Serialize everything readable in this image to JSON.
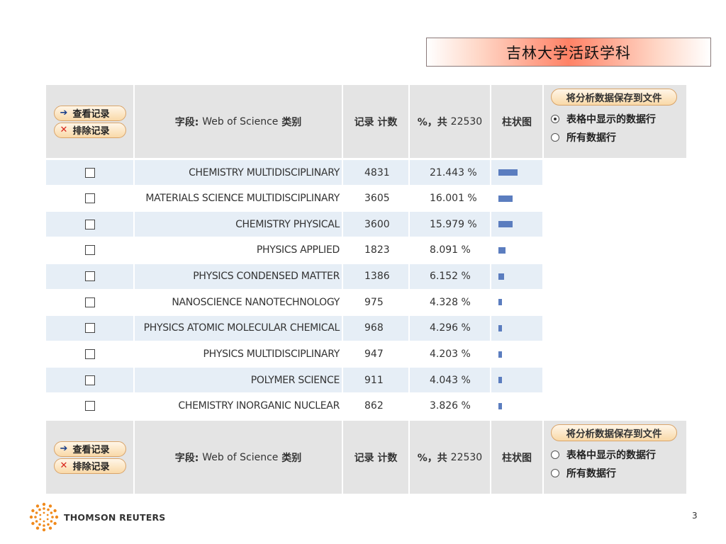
{
  "slide": {
    "title": "吉林大学活跃学科",
    "page_number": "3",
    "logo_text": "THOMSON REUTERS"
  },
  "header": {
    "view_records_label": "查看记录",
    "exclude_records_label": "排除记录",
    "field_prefix": "字段:",
    "field_name": "Web of Science",
    "field_suffix": "类别",
    "count_label": "记录 计数",
    "percent_prefix": "%，共",
    "percent_total": "22530",
    "bar_label": "柱状图",
    "save_button_label": "将分析数据保存到文件",
    "option_displayed_rows": "表格中显示的数据行",
    "option_all_rows": "所有数据行"
  },
  "rows": [
    {
      "category": "CHEMISTRY MULTIDISCIPLINARY",
      "count": "4831",
      "percent": "21.443 %",
      "share": 21.443
    },
    {
      "category": "MATERIALS SCIENCE MULTIDISCIPLINARY",
      "count": "3605",
      "percent": "16.001 %",
      "share": 16.001
    },
    {
      "category": "CHEMISTRY PHYSICAL",
      "count": "3600",
      "percent": "15.979 %",
      "share": 15.979
    },
    {
      "category": "PHYSICS APPLIED",
      "count": "1823",
      "percent": "8.091 %",
      "share": 8.091
    },
    {
      "category": "PHYSICS CONDENSED MATTER",
      "count": "1386",
      "percent": "6.152 %",
      "share": 6.152
    },
    {
      "category": "NANOSCIENCE NANOTECHNOLOGY",
      "count": "975",
      "percent": "4.328 %",
      "share": 4.328
    },
    {
      "category": "PHYSICS ATOMIC MOLECULAR CHEMICAL",
      "count": "968",
      "percent": "4.296 %",
      "share": 4.296
    },
    {
      "category": "PHYSICS MULTIDISCIPLINARY",
      "count": "947",
      "percent": "4.203 %",
      "share": 4.203
    },
    {
      "category": "POLYMER SCIENCE",
      "count": "911",
      "percent": "4.043 %",
      "share": 4.043
    },
    {
      "category": "CHEMISTRY INORGANIC NUCLEAR",
      "count": "862",
      "percent": "3.826 %",
      "share": 3.826
    }
  ],
  "colors": {
    "bar": "#5b7dbf",
    "header_bg": "#e4e4e4",
    "alt_row_bg": "#e6eef6"
  },
  "icons": {
    "view": "arrow-right-icon",
    "exclude": "x-icon",
    "logo": "thomson-reuters-logo-icon"
  }
}
